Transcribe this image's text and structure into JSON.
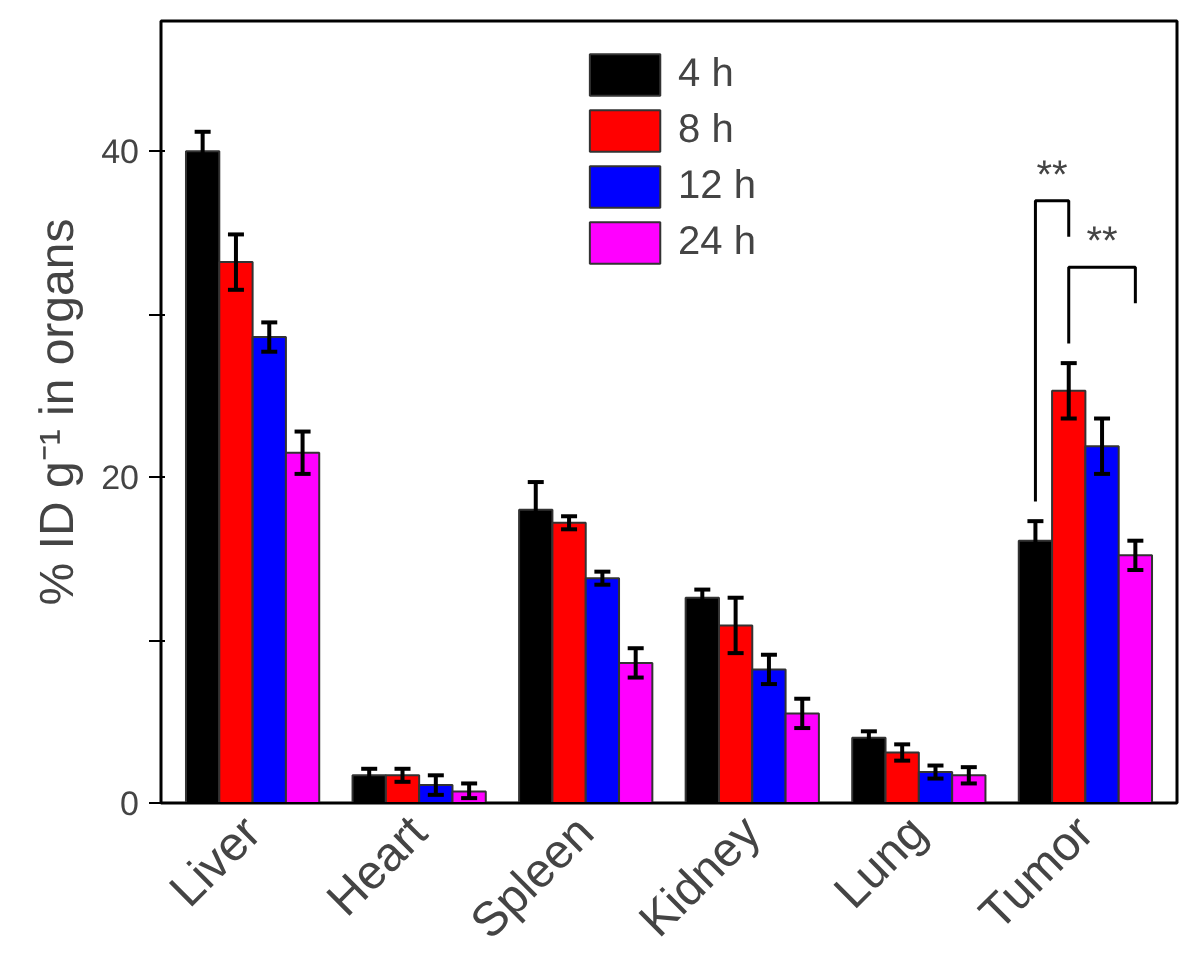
{
  "chart_data": {
    "type": "bar",
    "ylabel": "% ID g⁻¹ in organs",
    "categories": [
      "Liver",
      "Heart",
      "Spleen",
      "Kidney",
      "Lung",
      "Tumor"
    ],
    "series": [
      {
        "name": "4 h",
        "color": "#000000",
        "values": [
          40.0,
          1.7,
          18.0,
          12.6,
          4.0,
          16.1
        ],
        "errors": [
          1.2,
          0.4,
          1.7,
          0.5,
          0.4,
          1.2
        ]
      },
      {
        "name": "8 h",
        "color": "#ff0000",
        "values": [
          33.2,
          1.7,
          17.2,
          10.9,
          3.1,
          25.3
        ],
        "errors": [
          1.7,
          0.4,
          0.4,
          1.7,
          0.5,
          1.7
        ]
      },
      {
        "name": "12 h",
        "color": "#0000ff",
        "values": [
          28.6,
          1.1,
          13.8,
          8.2,
          1.9,
          21.9
        ],
        "errors": [
          0.9,
          0.6,
          0.4,
          0.9,
          0.4,
          1.7
        ]
      },
      {
        "name": "24 h",
        "color": "#ff00ff",
        "values": [
          21.5,
          0.7,
          8.6,
          5.5,
          1.7,
          15.2
        ],
        "errors": [
          1.3,
          [
            0.4,
            0.5
          ],
          0.9,
          0.9,
          0.5,
          0.9
        ]
      }
    ],
    "ylim": [
      0,
      48
    ],
    "yticks": [
      0,
      {
        "value": 10,
        "label": null
      },
      20,
      {
        "value": 30,
        "label": null
      },
      40
    ],
    "grid": false,
    "legend": "top",
    "annotations": [
      "**",
      "**"
    ]
  }
}
